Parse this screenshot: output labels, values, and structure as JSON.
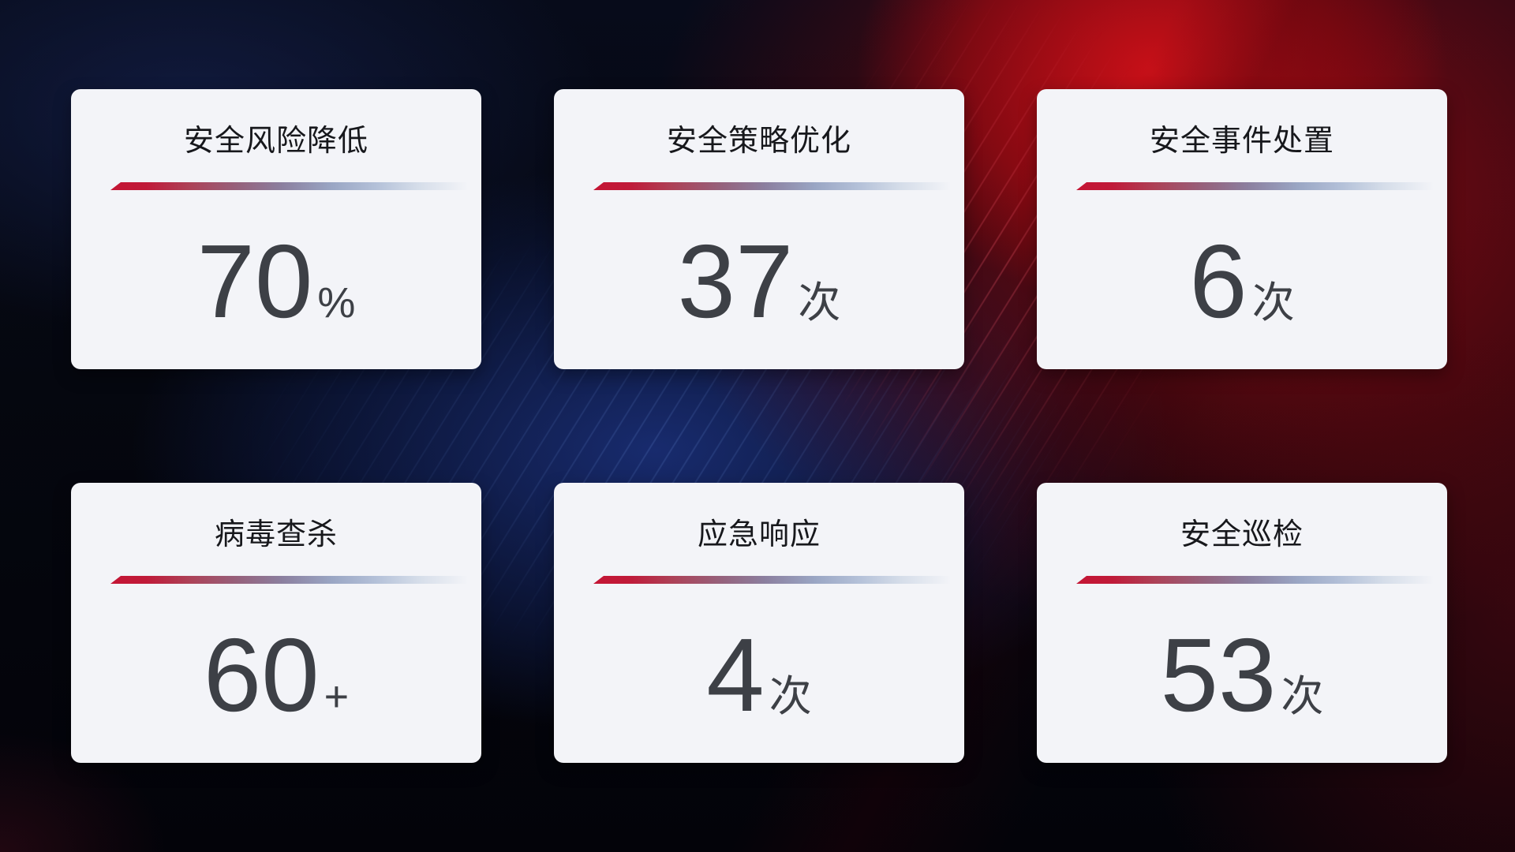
{
  "cards": [
    {
      "title": "安全风险降低",
      "value": "70",
      "unit": "%"
    },
    {
      "title": "安全策略优化",
      "value": "37",
      "unit": "次"
    },
    {
      "title": "安全事件处置",
      "value": "6",
      "unit": "次"
    },
    {
      "title": "病毒查杀",
      "value": "60",
      "unit": "+"
    },
    {
      "title": "应急响应",
      "value": "4",
      "unit": "次"
    },
    {
      "title": "安全巡检",
      "value": "53",
      "unit": "次"
    }
  ],
  "colors": {
    "card_background": "#f3f4f8",
    "title_text": "#17181c",
    "value_text": "#3d4046",
    "divider_red": "#c41534",
    "divider_steel_blue": "#b3c0d8",
    "background_base": "#05070f",
    "background_red_glow": "#a80d16",
    "background_blue_glow": "#16296e"
  }
}
